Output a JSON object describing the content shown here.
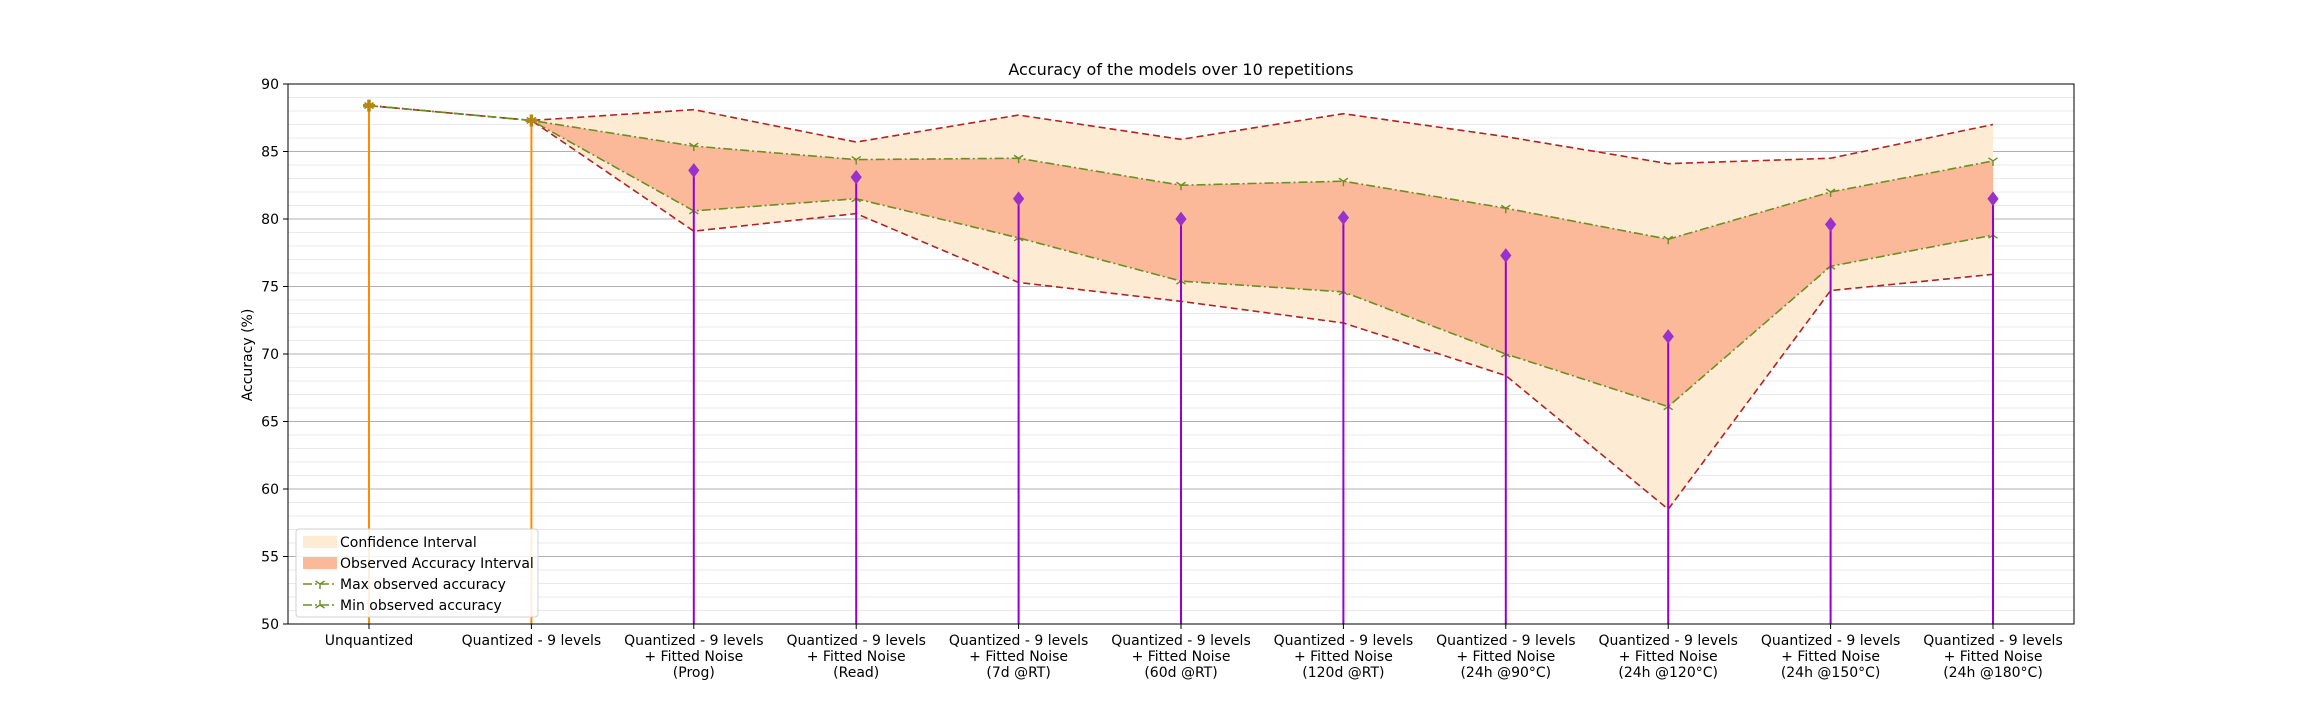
{
  "chart_data": {
    "type": "line",
    "title": "Accuracy of the models over 10 repetitions",
    "xlabel": "",
    "ylabel": "Accuracy (%)",
    "ylim": [
      50,
      90
    ],
    "yticks": [
      50,
      55,
      60,
      65,
      70,
      75,
      80,
      85,
      90
    ],
    "grid": "horizontal major and minor",
    "legend_position": "lower-left",
    "categories": [
      [
        "Unquantized"
      ],
      [
        "Quantized - 9 levels"
      ],
      [
        "Quantized - 9 levels",
        "+ Fitted Noise",
        "(Prog)"
      ],
      [
        "Quantized - 9 levels",
        "+ Fitted Noise",
        "(Read)"
      ],
      [
        "Quantized - 9 levels",
        "+ Fitted Noise",
        "(7d @RT)"
      ],
      [
        "Quantized - 9 levels",
        "+ Fitted Noise",
        "(60d @RT)"
      ],
      [
        "Quantized - 9 levels",
        "+ Fitted Noise",
        "(120d @RT)"
      ],
      [
        "Quantized - 9 levels",
        "+ Fitted Noise",
        "(24h @90°C)"
      ],
      [
        "Quantized - 9 levels",
        "+ Fitted Noise",
        "(24h @120°C)"
      ],
      [
        "Quantized - 9 levels",
        "+ Fitted Noise",
        "(24h @150°C)"
      ],
      [
        "Quantized - 9 levels",
        "+ Fitted Noise",
        "(24h @180°C)"
      ]
    ],
    "series": [
      {
        "name": "Confidence Interval",
        "kind": "band",
        "color": "#fdebd3",
        "upper": [
          88.4,
          87.3,
          88.1,
          85.7,
          87.7,
          85.9,
          87.8,
          86.1,
          84.1,
          84.5,
          87.0
        ],
        "lower": [
          88.4,
          87.3,
          79.1,
          80.4,
          75.3,
          73.9,
          72.3,
          68.4,
          58.5,
          74.7,
          75.9
        ]
      },
      {
        "name": "Observed Accuracy Interval",
        "kind": "band",
        "color": "#fbb99a",
        "upper": [
          88.4,
          87.3,
          85.4,
          84.4,
          84.5,
          82.5,
          82.8,
          80.8,
          78.5,
          82.0,
          84.3
        ],
        "lower": [
          88.4,
          87.3,
          80.6,
          81.5,
          78.6,
          75.4,
          74.6,
          70.0,
          66.1,
          76.5,
          78.8
        ]
      },
      {
        "name": "Max observed accuracy",
        "kind": "line",
        "color": "#6b8e23",
        "values": [
          88.4,
          87.3,
          85.4,
          84.4,
          84.5,
          82.5,
          82.8,
          80.8,
          78.5,
          82.0,
          84.3
        ]
      },
      {
        "name": "Min observed accuracy",
        "kind": "line",
        "color": "#6b8e23",
        "values": [
          88.4,
          87.3,
          80.6,
          81.5,
          78.6,
          75.4,
          74.6,
          70.0,
          66.1,
          76.5,
          78.8
        ]
      }
    ],
    "mean_values": [
      88.4,
      87.3,
      83.6,
      83.1,
      81.5,
      80.0,
      80.1,
      77.3,
      71.3,
      79.6,
      81.5
    ],
    "colors": {
      "baseline_stem": "#ff8c00",
      "baseline_marker": "#b8860b",
      "noise_stem": "#9400d3",
      "noise_marker": "#9932cc",
      "ci_bound_line": "#b22222"
    },
    "legend": [
      "Confidence Interval",
      "Observed Accuracy Interval",
      "Max observed accuracy",
      "Min observed accuracy"
    ]
  }
}
